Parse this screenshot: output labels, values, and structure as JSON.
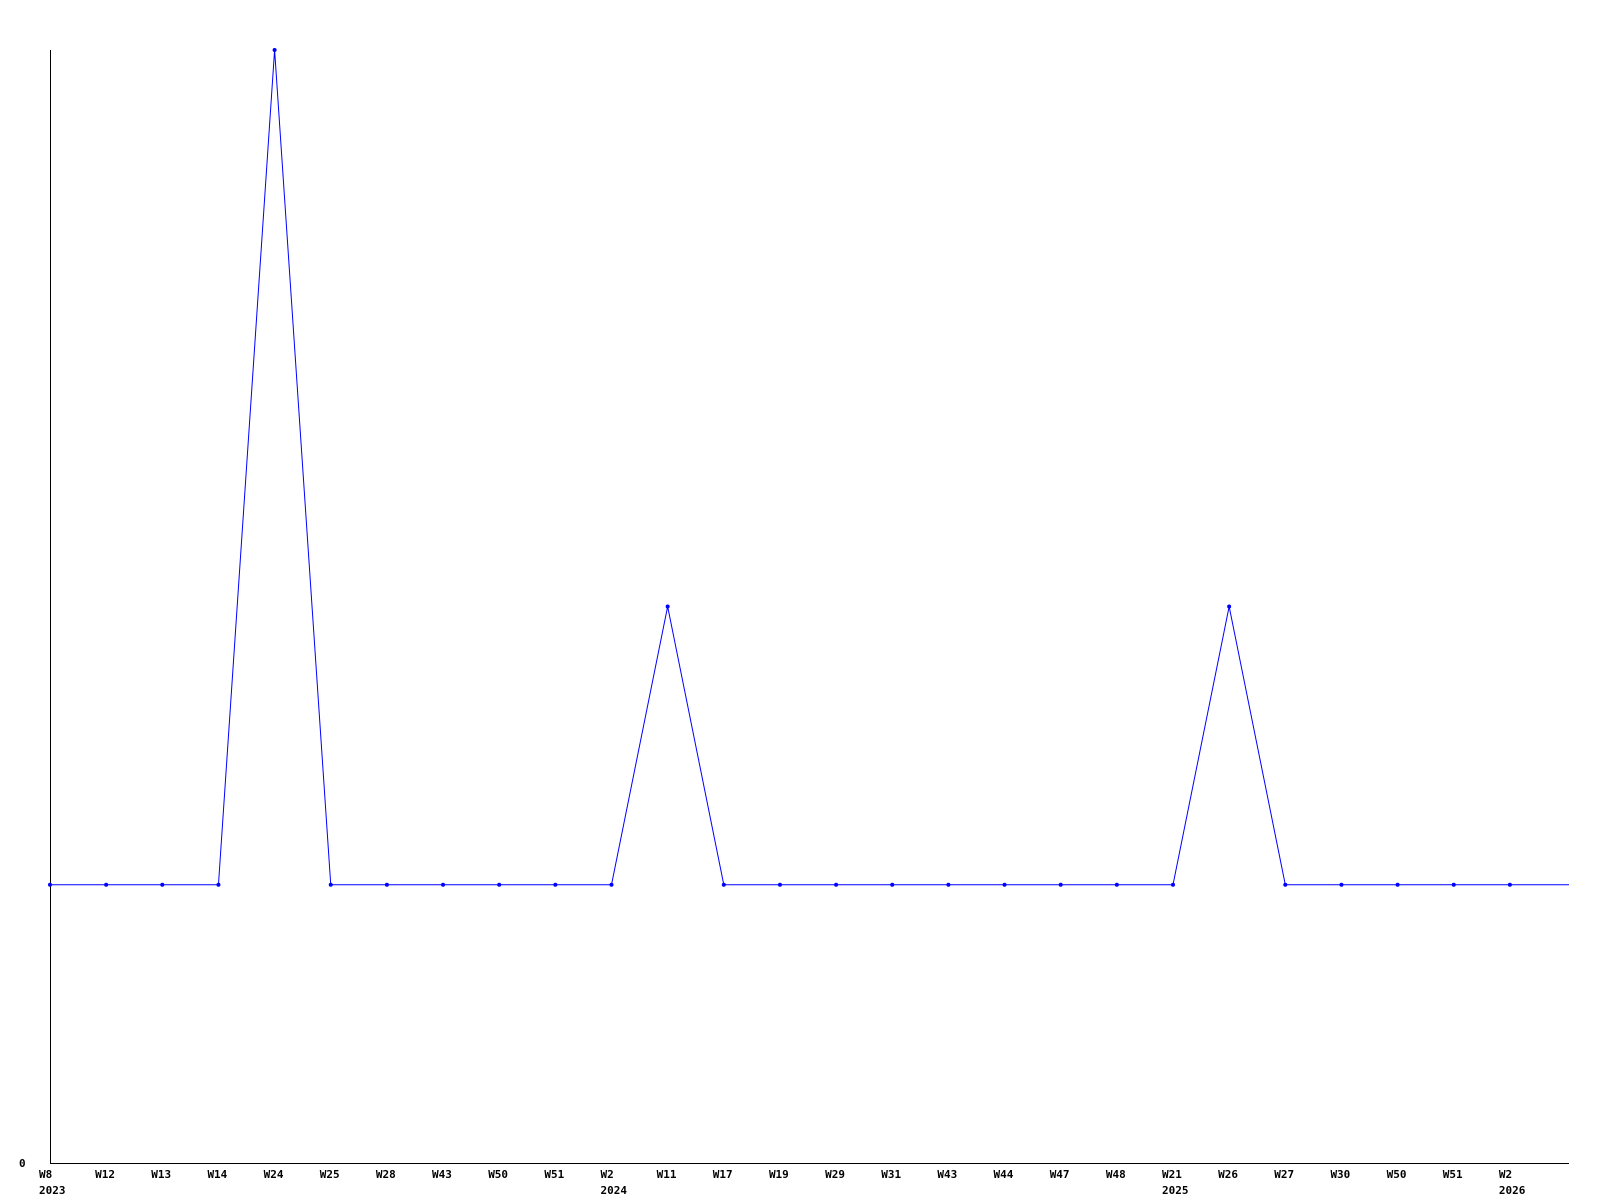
{
  "chart_data": {
    "type": "line",
    "title": "",
    "xlabel": "",
    "ylabel": "",
    "ylim": [
      0,
      4
    ],
    "y_tick_labels": [
      "0"
    ],
    "grid": false,
    "line_color": "#0000ff",
    "categories": [
      {
        "week": "W8",
        "year": "2023"
      },
      {
        "week": "W12",
        "year": ""
      },
      {
        "week": "W13",
        "year": ""
      },
      {
        "week": "W14",
        "year": ""
      },
      {
        "week": "W24",
        "year": ""
      },
      {
        "week": "W25",
        "year": ""
      },
      {
        "week": "W28",
        "year": ""
      },
      {
        "week": "W43",
        "year": ""
      },
      {
        "week": "W50",
        "year": ""
      },
      {
        "week": "W51",
        "year": ""
      },
      {
        "week": "W2",
        "year": "2024"
      },
      {
        "week": "W11",
        "year": ""
      },
      {
        "week": "W17",
        "year": ""
      },
      {
        "week": "W19",
        "year": ""
      },
      {
        "week": "W29",
        "year": ""
      },
      {
        "week": "W31",
        "year": ""
      },
      {
        "week": "W43",
        "year": ""
      },
      {
        "week": "W44",
        "year": ""
      },
      {
        "week": "W47",
        "year": ""
      },
      {
        "week": "W48",
        "year": ""
      },
      {
        "week": "W21",
        "year": "2025"
      },
      {
        "week": "W26",
        "year": ""
      },
      {
        "week": "W27",
        "year": ""
      },
      {
        "week": "W30",
        "year": ""
      },
      {
        "week": "W50",
        "year": ""
      },
      {
        "week": "W51",
        "year": ""
      },
      {
        "week": "W2",
        "year": "2026"
      }
    ],
    "values": [
      1,
      1,
      1,
      1,
      4,
      1,
      1,
      1,
      1,
      1,
      1,
      2,
      1,
      1,
      1,
      1,
      1,
      1,
      1,
      1,
      1,
      2,
      1,
      1,
      1,
      1,
      1
    ]
  }
}
